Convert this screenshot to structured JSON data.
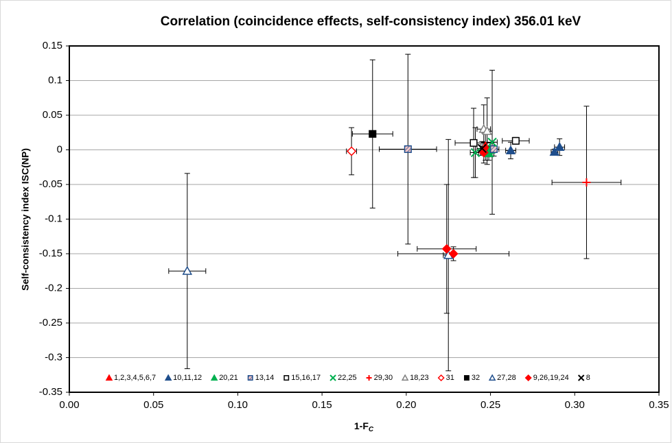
{
  "chart_data": {
    "type": "scatter",
    "title": "Correlation (coincidence effects, self-consistency index) 356.01 keV",
    "xlabel": {
      "main": "1-F",
      "sub": "C"
    },
    "ylabel": "Self-consistency index ISC(NP)",
    "xlim": [
      0,
      0.35
    ],
    "xticks": [
      {
        "value": 0,
        "label": "0.00"
      },
      {
        "value": 0.05,
        "label": "0.05"
      },
      {
        "value": 0.1,
        "label": "0.10"
      },
      {
        "value": 0.15,
        "label": "0.15"
      },
      {
        "value": 0.2,
        "label": "0.20"
      },
      {
        "value": 0.25,
        "label": "0.25"
      },
      {
        "value": 0.3,
        "label": "0.30"
      },
      {
        "value": 0.35,
        "label": "0.35"
      }
    ],
    "ylim": [
      -0.35,
      0.15
    ],
    "yticks": [
      0.15,
      0.1,
      0.05,
      0,
      -0.05,
      -0.1,
      -0.15,
      -0.2,
      -0.25,
      -0.3,
      -0.35
    ],
    "grid": true,
    "legend": "bottom",
    "series": [
      {
        "name": "1,2,3,4,5,6,7",
        "color": "#ff0000",
        "marker": "triangle",
        "x": [
          0.247
        ],
        "values": [
          0.005
        ],
        "xerr": [
          0.003
        ],
        "yerr": [
          0.02
        ]
      },
      {
        "name": "10,11,12",
        "color": "#1f4e8c",
        "marker": "triangle",
        "x": [
          0.262,
          0.288,
          0.291
        ],
        "values": [
          -0.001,
          -0.003,
          0.004
        ],
        "xerr": [
          0.003,
          0.002,
          0.003
        ],
        "yerr": [
          0.012,
          0.004,
          0.012
        ]
      },
      {
        "name": "20,21",
        "color": "#00b050",
        "marker": "triangle",
        "x": [
          0.249,
          0.25
        ],
        "values": [
          -0.005,
          0
        ],
        "xerr": [
          0.002,
          0.002
        ],
        "yerr": [
          0.01,
          0.01
        ]
      },
      {
        "name": "13,14",
        "color": "#1f4e8c",
        "marker": "square-hatched",
        "x": [
          0.201,
          0.252
        ],
        "values": [
          0.001,
          0.001
        ],
        "xerr": [
          0.017,
          0.003
        ],
        "yerr": [
          0.137,
          0.01
        ]
      },
      {
        "name": "15,16,17",
        "color": "#000000",
        "marker": "square-open",
        "x": [
          0.24,
          0.265
        ],
        "values": [
          0.01,
          0.013
        ],
        "xerr": [
          0.011,
          0.008
        ],
        "yerr": [
          0.05,
          0.005
        ]
      },
      {
        "name": "22,25",
        "color": "#00b050",
        "marker": "x",
        "x": [
          0.241,
          0.251
        ],
        "values": [
          -0.004,
          0.011
        ],
        "xerr": [
          0.003,
          0.003
        ],
        "yerr": [
          0.036,
          0.104
        ]
      },
      {
        "name": "29,30",
        "color": "#ff0000",
        "marker": "plus",
        "x": [
          0.307
        ],
        "values": [
          -0.047
        ],
        "xerr": [
          0.0205
        ],
        "yerr": [
          0.11
        ]
      },
      {
        "name": "18,23",
        "color": "#808080",
        "marker": "triangle-open",
        "x": [
          0.246,
          0.248
        ],
        "values": [
          0.03,
          0.027
        ],
        "xerr": [
          0.004,
          0.003
        ],
        "yerr": [
          0.035,
          0.048
        ]
      },
      {
        "name": "31",
        "color": "#ff0000",
        "marker": "diamond-open",
        "x": [
          0.1675
        ],
        "values": [
          -0.002
        ],
        "xerr": [
          0.003
        ],
        "yerr": [
          0.034
        ]
      },
      {
        "name": "32",
        "color": "#000000",
        "marker": "square",
        "x": [
          0.18
        ],
        "values": [
          0.023
        ],
        "xerr": [
          0.012
        ],
        "yerr": [
          0.107
        ]
      },
      {
        "name": "27,28",
        "color": "#1f4e8c",
        "marker": "triangle-open",
        "x": [
          0.07,
          0.225
        ],
        "values": [
          -0.175,
          -0.152
        ],
        "xerr": [
          0.011,
          0.003
        ],
        "yerr": [
          0.141,
          0.167
        ]
      },
      {
        "name": "9,26,19,24",
        "color": "#ff0000",
        "marker": "diamond",
        "x": [
          0.224,
          0.228,
          0.246
        ],
        "values": [
          -0.143,
          -0.15,
          -0.004
        ],
        "xerr": [
          0.0175,
          0.033,
          0.003
        ],
        "yerr": [
          0.093,
          0.01,
          0.015
        ]
      },
      {
        "name": "8",
        "color": "#000000",
        "marker": "x",
        "x": [
          0.245
        ],
        "values": [
          0.002
        ],
        "xerr": [
          0.003
        ],
        "yerr": [
          0.01
        ]
      }
    ]
  }
}
